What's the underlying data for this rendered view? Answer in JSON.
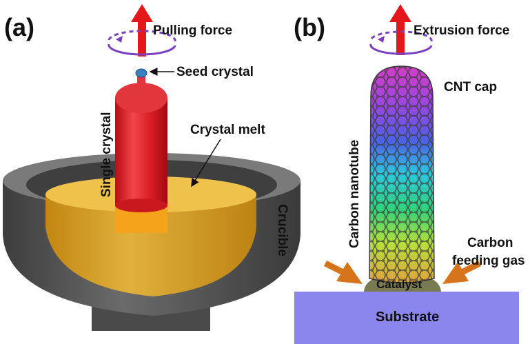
{
  "panels": {
    "a": {
      "label": "(a)",
      "pulling_force": "Pulling force",
      "seed_crystal": "Seed crystal",
      "crystal_melt": "Crystal melt",
      "single_crystal": "Single crystal",
      "crucible": "Crucible"
    },
    "b": {
      "label": "(b)",
      "extrusion_force": "Extrusion force",
      "cnt_cap": "CNT cap",
      "carbon_nanotube": "Carbon nanotube",
      "carbon_feeding_gas_line1": "Carbon",
      "carbon_feeding_gas_line2": "feeding gas",
      "catalyst": "Catalyst",
      "substrate": "Substrate"
    }
  },
  "colors": {
    "force_arrow": "#e4171a",
    "rotation_arrow": "#7a3fc0",
    "crystal": "#e3222a",
    "melt": "#d9a21a",
    "crucible": "#5a5a5a",
    "seed": "#3b7fbf",
    "feed_arrow": "#d6741c",
    "substrate": "#8a86ee"
  }
}
